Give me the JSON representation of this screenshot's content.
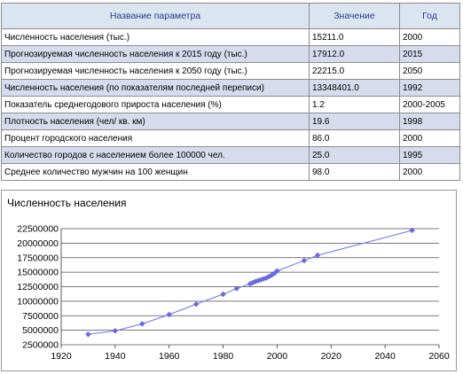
{
  "table": {
    "headers": {
      "param": "Название параметра",
      "value": "Значение",
      "year": "Год"
    },
    "rows": [
      {
        "param": "Численность населения (тыс.)",
        "value": "15211.0",
        "year": "2000"
      },
      {
        "param": "Прогнозируемая численность населения к 2015 году (тыс.)",
        "value": "17912.0",
        "year": "2015"
      },
      {
        "param": "Прогнозируемая численность населения к 2050 году (тыс.)",
        "value": "22215.0",
        "year": "2050"
      },
      {
        "param": "Численность населения (по показателям последней переписи)",
        "value": "13348401.0",
        "year": "1992"
      },
      {
        "param": "Показатель среднегодового прироста населения (%)",
        "value": "1.2",
        "year": "2000-2005"
      },
      {
        "param": "Плотность населения (чел/ кв. км)",
        "value": "19.6",
        "year": "1998"
      },
      {
        "param": "Процент городского населения",
        "value": "86.0",
        "year": "2000"
      },
      {
        "param": "Количество городов с населением более 100000 чел.",
        "value": "25.0",
        "year": "1995"
      },
      {
        "param": "Среднее количество мужчин на 100 женщин",
        "value": "98.0",
        "year": "2000"
      }
    ]
  },
  "chart_data": {
    "type": "line",
    "title": "Численность населения",
    "xlim": [
      1920,
      2060
    ],
    "ylim": [
      2500000,
      22500000
    ],
    "x_ticks": [
      "1920",
      "1940",
      "1960",
      "1980",
      "2000",
      "2020",
      "2040",
      "2060"
    ],
    "y_ticks": [
      "2500000",
      "5000000",
      "7500000",
      "10000000",
      "12500000",
      "15000000",
      "17500000",
      "20000000",
      "22500000"
    ],
    "grid": "horizontal",
    "legend": "none",
    "colors": {
      "line": "#8080f0",
      "marker": "#6a6ae0",
      "grid": "#4d4d4d"
    },
    "series": [
      {
        "x": [
          1930,
          1940,
          1950,
          1960,
          1970,
          1980,
          1985,
          1990,
          1991,
          1992,
          1993,
          1994,
          1995,
          1996,
          1997,
          1998,
          1999,
          2000,
          2010,
          2015,
          2050
        ],
        "values": [
          4300000,
          4900000,
          6100000,
          7700000,
          9500000,
          11200000,
          12200000,
          13000000,
          13200000,
          13400000,
          13550000,
          13700000,
          13850000,
          14000000,
          14250000,
          14500000,
          14800000,
          15211000,
          17000000,
          17912000,
          22215000
        ]
      }
    ]
  }
}
